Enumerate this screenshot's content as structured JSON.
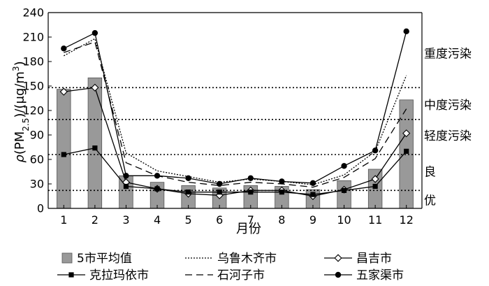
{
  "chart_data": {
    "type": "bar+line",
    "xlabel": "月份",
    "ylabel": "ρ(PM2.5)/(μg/m3)",
    "ylabel_parts": {
      "rho": "ρ",
      "pm": "(PM",
      "sub": "2.5",
      "unit": ")/(μg/m",
      "sup": "3",
      "close": ")"
    },
    "categories": [
      "1",
      "2",
      "3",
      "4",
      "5",
      "6",
      "7",
      "8",
      "9",
      "10",
      "11",
      "12"
    ],
    "ylim": [
      0,
      240
    ],
    "yticks": [
      "0",
      "30",
      "60",
      "90",
      "120",
      "150",
      "180",
      "210",
      "240"
    ],
    "threshold_lines": [
      {
        "value": 22
      },
      {
        "value": 66
      },
      {
        "value": 109
      },
      {
        "value": 148
      }
    ],
    "band_labels": [
      {
        "text": "重度污染",
        "value": 190
      },
      {
        "text": "中度污染",
        "value": 127
      },
      {
        "text": "轻度污染",
        "value": 89
      },
      {
        "text": "良",
        "value": 45
      },
      {
        "text": "优",
        "value": 10
      }
    ],
    "series": [
      {
        "name": "5市平均值",
        "kind": "bar",
        "color": "#999999",
        "values": [
          146,
          160,
          40,
          32,
          28,
          25,
          28,
          27,
          23,
          34,
          48,
          133
        ]
      },
      {
        "name": "乌鲁木齐市",
        "kind": "line",
        "dash": "2,2",
        "marker": "none",
        "values": [
          187,
          208,
          68,
          46,
          39,
          32,
          36,
          33,
          29,
          41,
          70,
          163
        ]
      },
      {
        "name": "昌吉市",
        "kind": "line",
        "dash": "none",
        "marker": "diamond",
        "values": [
          143,
          148,
          32,
          24,
          18,
          16,
          22,
          22,
          15,
          23,
          36,
          92
        ]
      },
      {
        "name": "克拉玛依市",
        "kind": "line",
        "dash": "none",
        "marker": "square",
        "values": [
          66,
          74,
          27,
          24,
          20,
          20,
          20,
          20,
          17,
          22,
          27,
          70
        ]
      },
      {
        "name": "石河子市",
        "kind": "line",
        "dash": "10,6",
        "marker": "none",
        "values": [
          191,
          204,
          56,
          40,
          32,
          28,
          32,
          30,
          26,
          38,
          61,
          122
        ]
      },
      {
        "name": "五家渠市",
        "kind": "line",
        "dash": "none",
        "marker": "circle",
        "values": [
          196,
          215,
          40,
          40,
          37,
          30,
          37,
          33,
          31,
          52,
          71,
          217
        ]
      }
    ],
    "legend": [
      {
        "label": "5市平均值",
        "symbol": "bar"
      },
      {
        "label": "乌鲁木齐市",
        "symbol": "dotted"
      },
      {
        "label": "昌吉市",
        "symbol": "diamond"
      },
      {
        "label": "克拉玛依市",
        "symbol": "square"
      },
      {
        "label": "石河子市",
        "symbol": "dashed"
      },
      {
        "label": "五家渠市",
        "symbol": "circle"
      }
    ]
  }
}
